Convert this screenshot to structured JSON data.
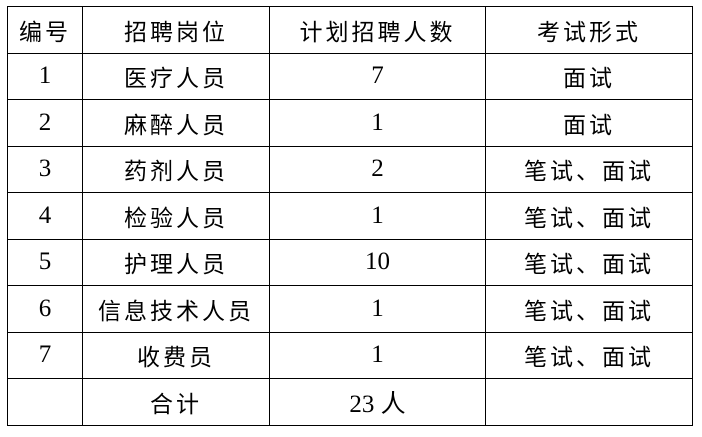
{
  "headers": [
    "编号",
    "招聘岗位",
    "计划招聘人数",
    "考试形式"
  ],
  "rows": [
    {
      "no": "1",
      "position": "医疗人员",
      "count": "7",
      "exam": "面试"
    },
    {
      "no": "2",
      "position": "麻醉人员",
      "count": "1",
      "exam": "面试"
    },
    {
      "no": "3",
      "position": "药剂人员",
      "count": "2",
      "exam": "笔试、面试"
    },
    {
      "no": "4",
      "position": "检验人员",
      "count": "1",
      "exam": "笔试、面试"
    },
    {
      "no": "5",
      "position": "护理人员",
      "count": "10",
      "exam": "笔试、面试"
    },
    {
      "no": "6",
      "position": "信息技术人员",
      "count": "1",
      "exam": "笔试、面试"
    },
    {
      "no": "7",
      "position": "收费员",
      "count": "1",
      "exam": "笔试、面试"
    }
  ],
  "total": {
    "label": "合计",
    "count": "23 人"
  }
}
